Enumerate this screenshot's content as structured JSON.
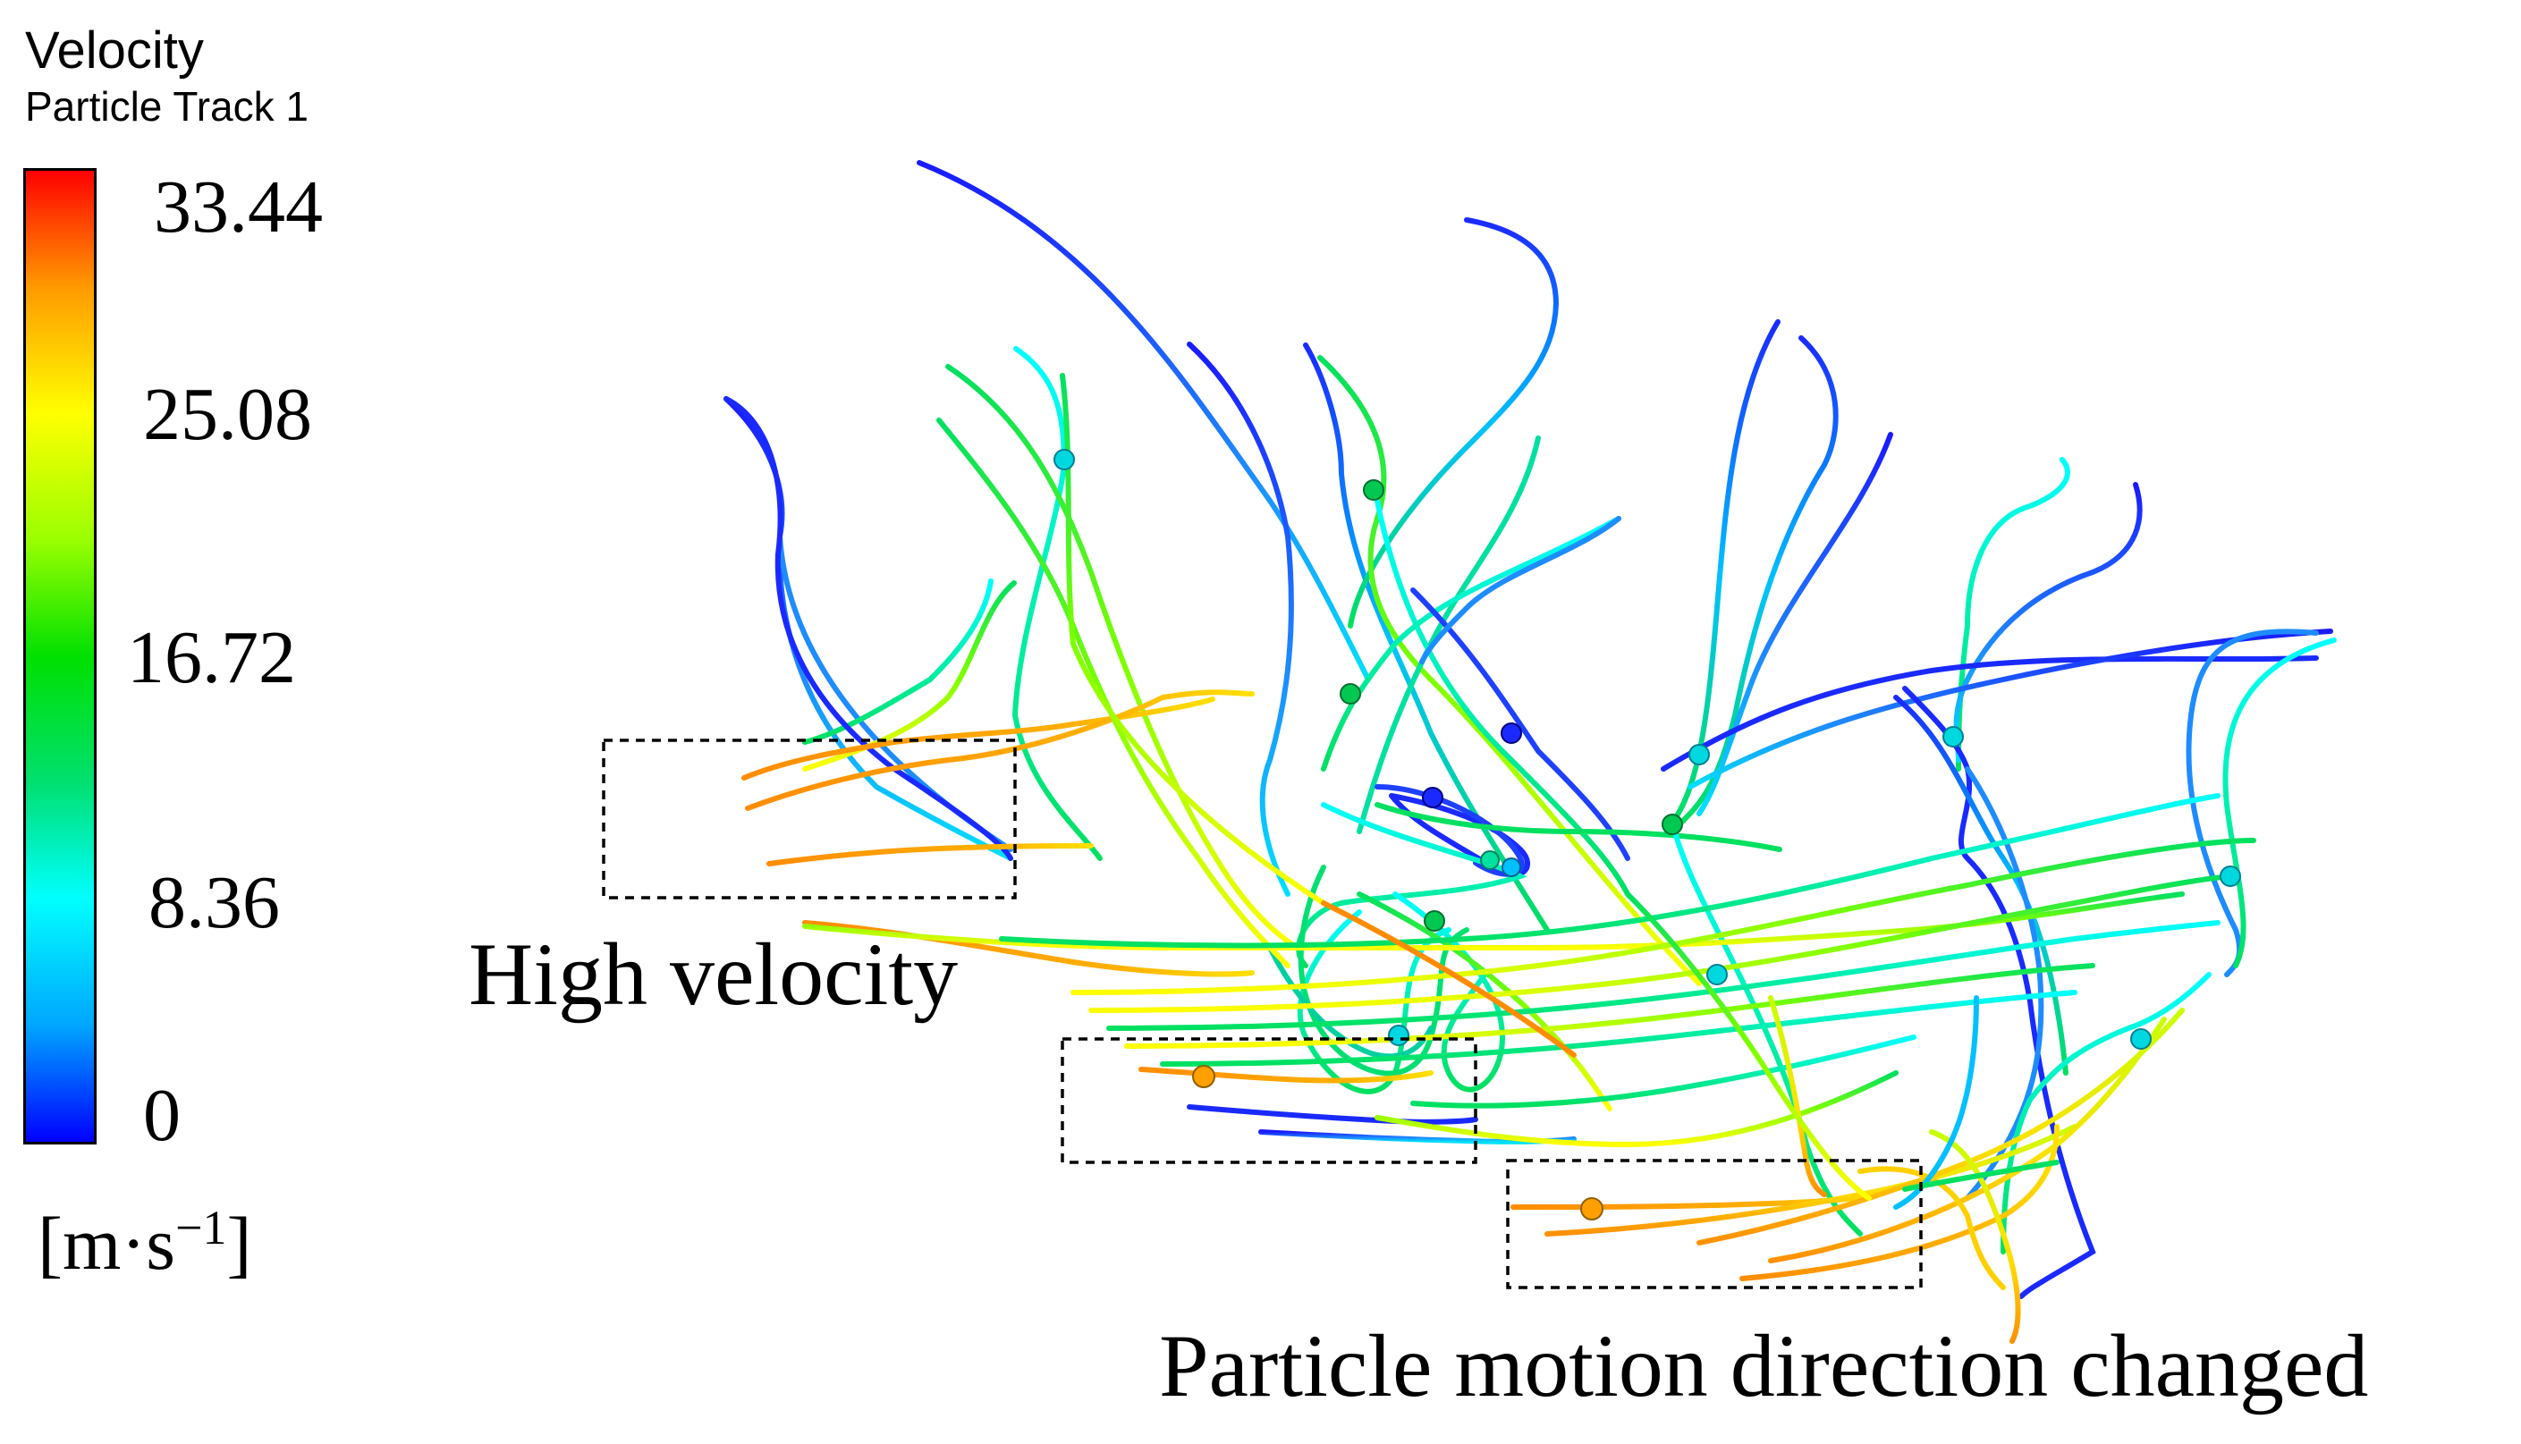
{
  "legend": {
    "title": "Velocity",
    "subtitle": "Particle Track 1",
    "ticks": [
      "33.44",
      "25.08",
      "16.72",
      "8.36",
      "0"
    ],
    "unit_prefix": "[m·s",
    "unit_exp": "−1",
    "unit_suffix": "]",
    "min": 0,
    "max": 33.44,
    "colors": [
      "#0000ff",
      "#00a6ff",
      "#00ffff",
      "#00e070",
      "#00e000",
      "#9aff00",
      "#ffff00",
      "#ff9a00",
      "#ff0000"
    ]
  },
  "annotations": {
    "high_velocity": "High velocity",
    "direction_changed": "Particle motion direction changed"
  }
}
